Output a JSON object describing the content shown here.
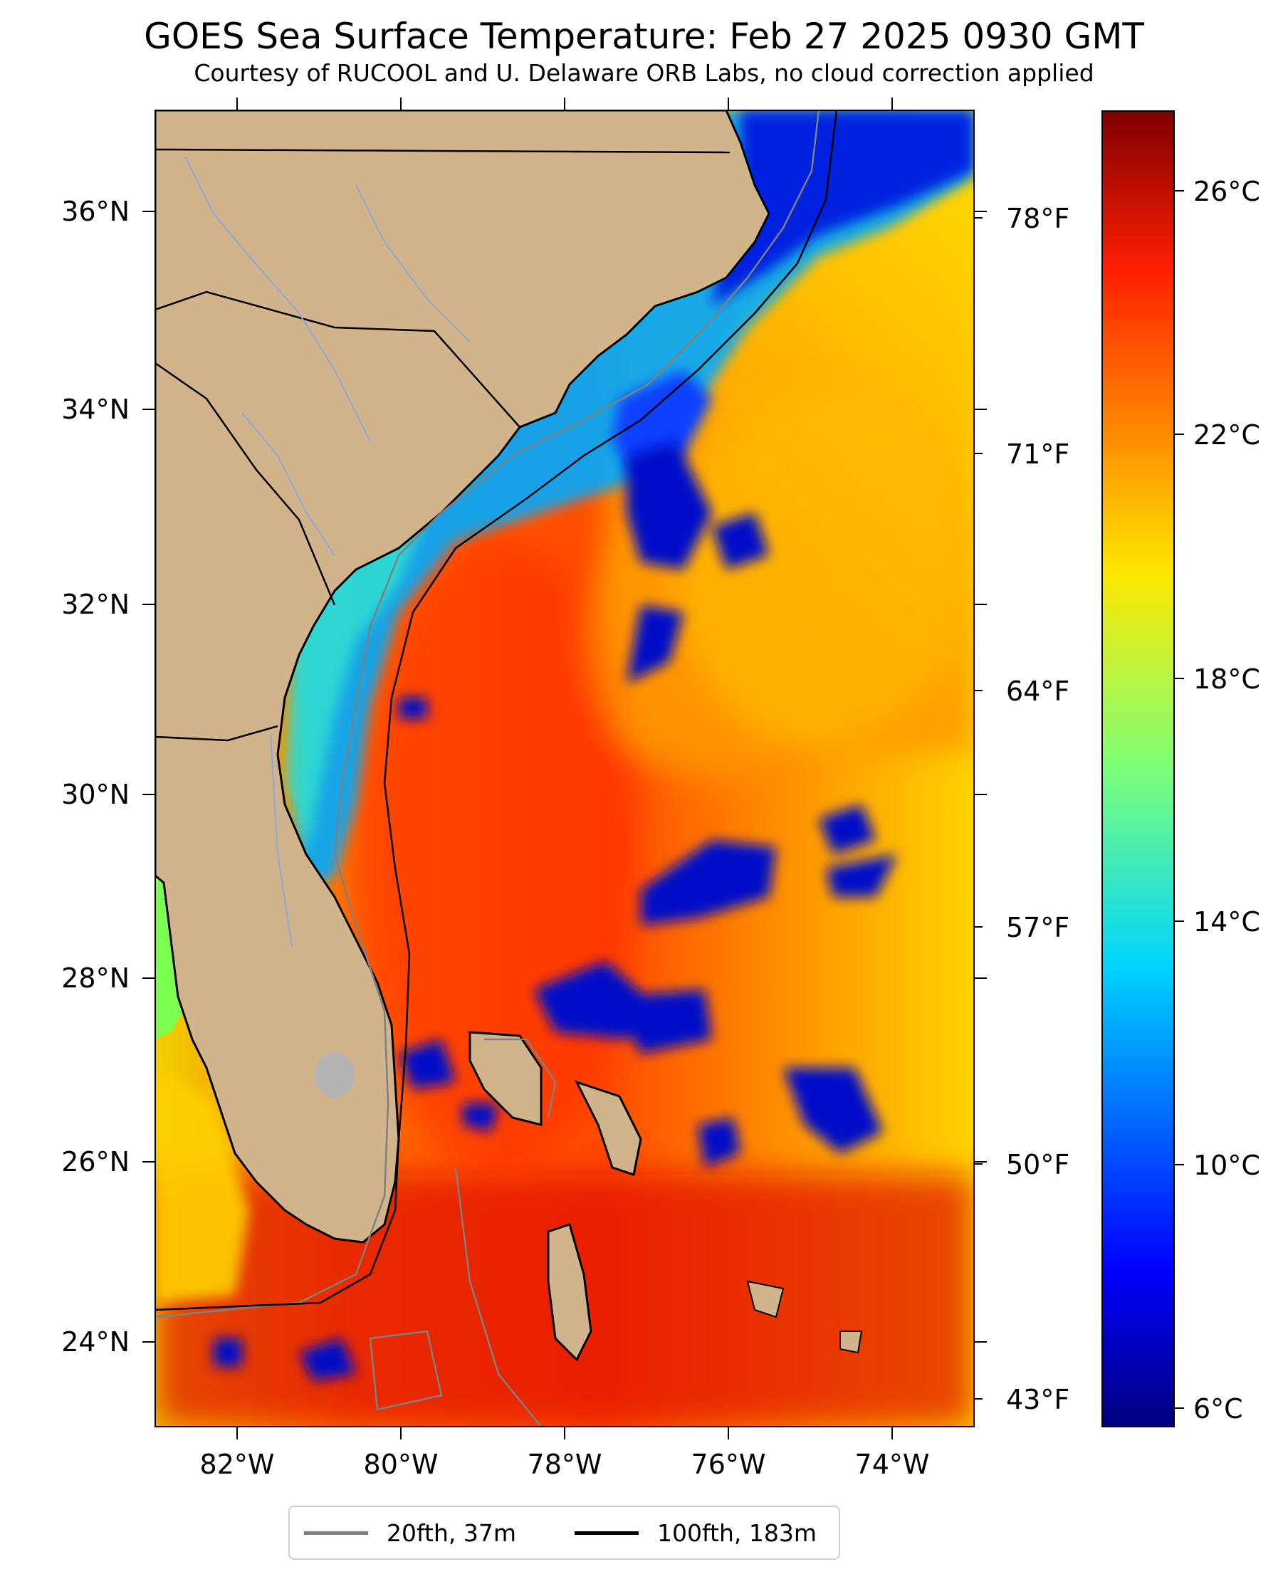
{
  "title": "GOES Sea Surface Temperature: Feb 27 2025 0930 GMT",
  "subtitle": "Courtesy of RUCOOL and U. Delaware ORB Labs, no cloud correction applied",
  "axes": {
    "lat_ticks": [
      "36°N",
      "34°N",
      "32°N",
      "30°N",
      "28°N",
      "26°N",
      "24°N"
    ],
    "lon_ticks": [
      "82°W",
      "80°W",
      "78°W",
      "76°W",
      "74°W"
    ],
    "fahrenheit_ticks": [
      "78°F",
      "71°F",
      "64°F",
      "57°F",
      "50°F",
      "43°F"
    ],
    "celsius_ticks": [
      "26°C",
      "22°C",
      "18°C",
      "14°C",
      "10°C",
      "6°C"
    ]
  },
  "colors": {
    "land": "#d2b48c",
    "isobath_20": "#808080",
    "isobath_100": "#000000",
    "warm": "#e23b00",
    "cold": "#0010c8"
  },
  "legend": {
    "items": [
      {
        "label": "20fth, 37m",
        "color": "#808080"
      },
      {
        "label": "100fth, 183m",
        "color": "#000000"
      }
    ]
  },
  "chart_data": {
    "type": "heatmap",
    "title": "GOES Sea Surface Temperature: Feb 27 2025 0930 GMT",
    "lon_range": [
      -83,
      -73
    ],
    "lat_range": [
      23.1,
      37
    ],
    "lon_ticks": [
      -82,
      -80,
      -78,
      -76,
      -74
    ],
    "lat_ticks": [
      36,
      34,
      32,
      30,
      28,
      26,
      24
    ],
    "colorbar_celsius": [
      26,
      22,
      18,
      14,
      10,
      6
    ],
    "colorbar_fahrenheit": [
      78,
      71,
      64,
      57,
      50,
      43
    ],
    "colormap": "jet"
  }
}
